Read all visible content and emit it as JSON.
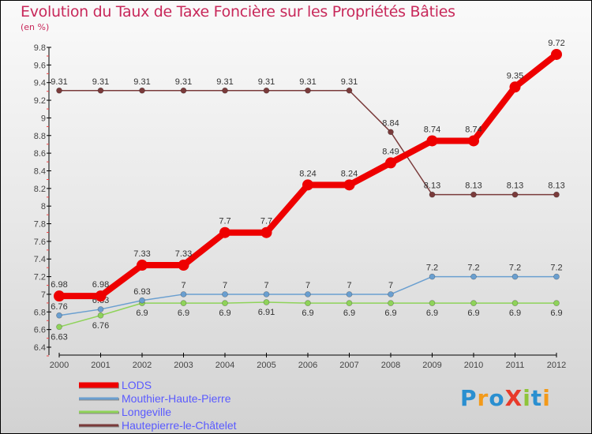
{
  "chart_data": {
    "type": "line",
    "title": "Evolution du Taux de Taxe Foncière sur les Propriétés Bâties",
    "subtitle": "(en %)",
    "xlabel": "",
    "ylabel": "",
    "x": [
      "2000",
      "2001",
      "2002",
      "2003",
      "2004",
      "2005",
      "2006",
      "2007",
      "2008",
      "2009",
      "2010",
      "2011",
      "2012"
    ],
    "ylim": [
      6.4,
      9.8
    ],
    "yticks": [
      "6.4",
      "6.6",
      "6.8",
      "7",
      "7.2",
      "7.4",
      "7.6",
      "7.8",
      "8",
      "8.2",
      "8.4",
      "8.6",
      "8.8",
      "9",
      "9.2",
      "9.4",
      "9.6",
      "9.8"
    ],
    "legend_position": "bottom-left",
    "series": [
      {
        "name": "LODS",
        "color": "#ee0000",
        "values": [
          6.98,
          6.98,
          7.33,
          7.33,
          7.7,
          7.7,
          8.24,
          8.24,
          8.49,
          8.74,
          8.74,
          9.35,
          9.72
        ]
      },
      {
        "name": "Mouthier-Haute-Pierre",
        "color": "#6a9fd0",
        "values": [
          6.76,
          6.83,
          6.93,
          7,
          7,
          7,
          7,
          7,
          7,
          7.2,
          7.2,
          7.2,
          7.2
        ]
      },
      {
        "name": "Longeville",
        "color": "#8fd35a",
        "values": [
          6.63,
          6.76,
          6.9,
          6.9,
          6.9,
          6.91,
          6.9,
          6.9,
          6.9,
          6.9,
          6.9,
          6.9,
          6.9
        ]
      },
      {
        "name": "Hautepierre-le-Châtelet",
        "color": "#7a3b3b",
        "values": [
          9.31,
          9.31,
          9.31,
          9.31,
          9.31,
          9.31,
          9.31,
          9.31,
          8.84,
          8.13,
          8.13,
          8.13,
          8.13
        ]
      }
    ]
  },
  "logo": {
    "text": "ProXiti"
  }
}
